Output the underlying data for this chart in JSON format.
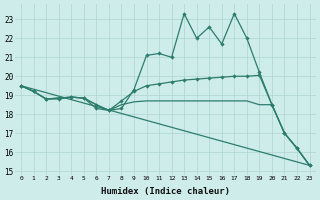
{
  "xlabel": "Humidex (Indice chaleur)",
  "bg_color": "#ceecea",
  "grid_color": "#aed4d0",
  "line_color": "#2d7d6e",
  "xlim": [
    -0.5,
    23.5
  ],
  "ylim": [
    14.8,
    23.8
  ],
  "yticks": [
    15,
    16,
    17,
    18,
    19,
    20,
    21,
    22,
    23
  ],
  "xticks": [
    0,
    1,
    2,
    3,
    4,
    5,
    6,
    7,
    8,
    9,
    10,
    11,
    12,
    13,
    14,
    15,
    16,
    17,
    18,
    19,
    20,
    21,
    22,
    23
  ],
  "line1_x": [
    0,
    1,
    2,
    3,
    4,
    5,
    6,
    7,
    8,
    9,
    10,
    11,
    12,
    13,
    14,
    15,
    16,
    17,
    18,
    19,
    20,
    21,
    22,
    23
  ],
  "line1_y": [
    19.5,
    19.2,
    18.8,
    18.8,
    18.9,
    18.85,
    18.3,
    18.2,
    18.3,
    19.3,
    21.1,
    21.2,
    21.0,
    23.3,
    22.0,
    22.6,
    21.7,
    23.3,
    22.0,
    20.2,
    18.5,
    17.0,
    16.2,
    15.3
  ],
  "line2_x": [
    0,
    1,
    2,
    3,
    4,
    5,
    6,
    7,
    8,
    9,
    10,
    11,
    12,
    13,
    14,
    15,
    16,
    17,
    18,
    19,
    20,
    21,
    22,
    23
  ],
  "line2_y": [
    19.5,
    19.2,
    18.8,
    18.85,
    18.9,
    18.85,
    18.5,
    18.2,
    18.7,
    19.2,
    19.5,
    19.6,
    19.7,
    19.8,
    19.85,
    19.9,
    19.95,
    20.0,
    20.0,
    20.05,
    18.5,
    17.0,
    16.2,
    15.3
  ],
  "line3_x": [
    0,
    1,
    2,
    3,
    4,
    5,
    6,
    7,
    8,
    9,
    10,
    11,
    12,
    13,
    14,
    15,
    16,
    17,
    18,
    19,
    20,
    21,
    22,
    23
  ],
  "line3_y": [
    19.5,
    19.2,
    18.8,
    18.85,
    18.9,
    18.85,
    18.5,
    18.2,
    18.5,
    18.65,
    18.7,
    18.7,
    18.7,
    18.7,
    18.7,
    18.7,
    18.7,
    18.7,
    18.7,
    18.5,
    18.5,
    17.0,
    16.2,
    15.3
  ],
  "line4_x": [
    0,
    23
  ],
  "line4_y": [
    19.5,
    15.3
  ]
}
